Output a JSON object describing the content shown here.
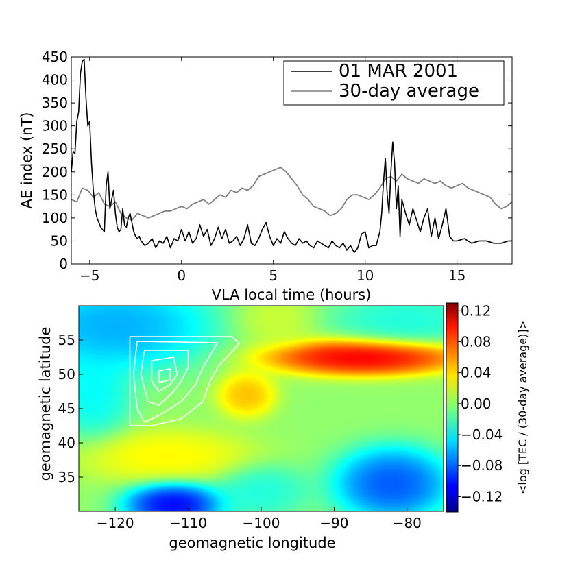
{
  "chart_data": [
    {
      "type": "line",
      "xlabel": "VLA local time (hours)",
      "ylabel": "AE index (nT)",
      "xlim": [
        -6,
        18
      ],
      "ylim": [
        0,
        450
      ],
      "xticks": [
        -5,
        0,
        5,
        10,
        15
      ],
      "xtick_labels": [
        "−5",
        "0",
        "5",
        "10",
        "15"
      ],
      "yticks": [
        0,
        50,
        100,
        150,
        200,
        250,
        300,
        350,
        400,
        450
      ],
      "ytick_labels": [
        "0",
        "50",
        "100",
        "150",
        "200",
        "250",
        "300",
        "350",
        "400",
        "450"
      ],
      "legend_position": "top-right",
      "series": [
        {
          "name": "01 MAR 2001",
          "color": "#000000",
          "x": [
            -6.0,
            -5.9,
            -5.8,
            -5.7,
            -5.6,
            -5.5,
            -5.4,
            -5.3,
            -5.2,
            -5.1,
            -5.0,
            -4.9,
            -4.8,
            -4.7,
            -4.6,
            -4.5,
            -4.4,
            -4.3,
            -4.2,
            -4.1,
            -4.0,
            -3.9,
            -3.8,
            -3.7,
            -3.6,
            -3.5,
            -3.4,
            -3.3,
            -3.2,
            -3.1,
            -3.0,
            -2.9,
            -2.8,
            -2.7,
            -2.6,
            -2.5,
            -2.4,
            -2.3,
            -2.2,
            -2.0,
            -1.8,
            -1.6,
            -1.4,
            -1.2,
            -1.0,
            -0.8,
            -0.6,
            -0.4,
            -0.2,
            0.0,
            0.2,
            0.4,
            0.6,
            0.8,
            1.0,
            1.2,
            1.4,
            1.6,
            1.8,
            2.0,
            2.2,
            2.4,
            2.6,
            2.8,
            3.0,
            3.2,
            3.4,
            3.6,
            3.8,
            4.0,
            4.2,
            4.4,
            4.6,
            4.8,
            5.0,
            5.2,
            5.4,
            5.6,
            5.8,
            6.0,
            6.2,
            6.4,
            6.6,
            6.8,
            7.0,
            7.2,
            7.4,
            7.6,
            7.8,
            8.0,
            8.2,
            8.4,
            8.6,
            8.8,
            9.0,
            9.2,
            9.4,
            9.6,
            9.8,
            10.0,
            10.2,
            10.4,
            10.6,
            10.8,
            10.9,
            11.0,
            11.1,
            11.2,
            11.3,
            11.4,
            11.5,
            11.6,
            11.7,
            11.8,
            11.9,
            12.0,
            12.2,
            12.4,
            12.6,
            12.8,
            13.0,
            13.2,
            13.4,
            13.6,
            13.8,
            14.0,
            14.2,
            14.4,
            14.6,
            14.8,
            15.0,
            15.4,
            15.8,
            16.2,
            16.6,
            17.0,
            17.4,
            17.8,
            18.0
          ],
          "values": [
            200,
            245,
            240,
            310,
            330,
            415,
            440,
            445,
            360,
            300,
            310,
            220,
            160,
            120,
            100,
            90,
            80,
            75,
            70,
            170,
            200,
            120,
            140,
            160,
            110,
            80,
            70,
            75,
            120,
            85,
            80,
            100,
            110,
            90,
            70,
            60,
            55,
            60,
            50,
            40,
            45,
            55,
            35,
            50,
            45,
            60,
            35,
            55,
            50,
            75,
            50,
            70,
            45,
            55,
            85,
            60,
            75,
            40,
            55,
            80,
            55,
            75,
            45,
            50,
            60,
            40,
            55,
            85,
            45,
            40,
            55,
            75,
            90,
            60,
            40,
            55,
            45,
            70,
            55,
            45,
            40,
            55,
            45,
            50,
            40,
            35,
            50,
            45,
            40,
            35,
            50,
            40,
            35,
            45,
            30,
            40,
            25,
            35,
            65,
            70,
            35,
            40,
            40,
            70,
            110,
            180,
            230,
            150,
            110,
            200,
            265,
            220,
            120,
            170,
            60,
            140,
            110,
            85,
            120,
            95,
            70,
            100,
            120,
            60,
            100,
            55,
            85,
            120,
            60,
            50,
            50,
            55,
            45,
            50,
            50,
            45,
            45,
            50,
            50
          ]
        },
        {
          "name": "30-day average",
          "color": "#7f7f7f",
          "x": [
            -6.0,
            -5.7,
            -5.4,
            -5.1,
            -4.8,
            -4.5,
            -4.2,
            -3.9,
            -3.6,
            -3.3,
            -3.0,
            -2.7,
            -2.4,
            -2.1,
            -1.8,
            -1.5,
            -1.2,
            -0.9,
            -0.6,
            -0.3,
            0.0,
            0.3,
            0.6,
            0.9,
            1.2,
            1.5,
            1.8,
            2.1,
            2.4,
            2.7,
            3.0,
            3.3,
            3.6,
            3.9,
            4.2,
            4.5,
            4.8,
            5.1,
            5.4,
            5.7,
            6.0,
            6.3,
            6.6,
            6.9,
            7.2,
            7.5,
            7.8,
            8.1,
            8.4,
            8.7,
            9.0,
            9.3,
            9.6,
            9.9,
            10.2,
            10.5,
            10.8,
            11.1,
            11.4,
            11.7,
            12.0,
            12.3,
            12.6,
            12.9,
            13.2,
            13.5,
            13.8,
            14.1,
            14.4,
            14.7,
            15.0,
            15.3,
            15.6,
            15.9,
            16.2,
            16.5,
            16.8,
            17.1,
            17.4,
            17.7,
            18.0
          ],
          "values": [
            140,
            135,
            165,
            160,
            145,
            155,
            130,
            125,
            135,
            110,
            100,
            95,
            110,
            105,
            100,
            105,
            110,
            115,
            115,
            120,
            125,
            120,
            130,
            135,
            140,
            130,
            140,
            150,
            145,
            160,
            155,
            165,
            160,
            170,
            190,
            195,
            200,
            205,
            210,
            200,
            185,
            170,
            150,
            140,
            125,
            120,
            115,
            105,
            110,
            120,
            140,
            150,
            150,
            145,
            140,
            150,
            165,
            185,
            190,
            180,
            195,
            185,
            180,
            175,
            185,
            180,
            175,
            180,
            170,
            165,
            170,
            175,
            165,
            160,
            155,
            150,
            145,
            130,
            120,
            125,
            135
          ]
        }
      ]
    },
    {
      "type": "heatmap",
      "xlabel": "geomagnetic longitude",
      "ylabel": "geomagnetic latitude",
      "xlim": [
        -125,
        -75
      ],
      "ylim": [
        30,
        60
      ],
      "xticks": [
        -120,
        -110,
        -100,
        -90,
        -80
      ],
      "xtick_labels": [
        "−120",
        "−110",
        "−100",
        "−90",
        "−80"
      ],
      "yticks": [
        35,
        40,
        45,
        50,
        55
      ],
      "ytick_labels": [
        "35",
        "40",
        "45",
        "50",
        "55"
      ],
      "colorbar": {
        "label": "<log [TEC / (30-day average)]>",
        "vmin": -0.14,
        "vmax": 0.13,
        "ticks": [
          0.12,
          0.08,
          0.04,
          0.0,
          -0.04,
          -0.08,
          -0.12
        ],
        "tick_labels": [
          "0.12",
          "0.08",
          "0.04",
          "0.00",
          "−0.04",
          "−0.08",
          "−0.12"
        ],
        "colormap": "jet"
      },
      "field_features": [
        {
          "lon": -120,
          "lat": 57,
          "value": -0.08,
          "spread_lon": 10,
          "spread_lat": 5
        },
        {
          "lon": -80,
          "lat": 58,
          "value": -0.04,
          "spread_lon": 8,
          "spread_lat": 3
        },
        {
          "lon": -112,
          "lat": 31,
          "value": -0.14,
          "spread_lon": 5,
          "spread_lat": 2.5
        },
        {
          "lon": -82,
          "lat": 34,
          "value": -0.11,
          "spread_lon": 6,
          "spread_lat": 4
        },
        {
          "lon": -100,
          "lat": 33,
          "value": -0.04,
          "spread_lon": 5,
          "spread_lat": 3
        },
        {
          "lon": -86,
          "lat": 52.5,
          "value": 0.13,
          "spread_lon": 10,
          "spread_lat": 2
        },
        {
          "lon": -102,
          "lat": 47,
          "value": 0.06,
          "spread_lon": 3,
          "spread_lat": 2.5
        },
        {
          "lon": -113,
          "lat": 38,
          "value": 0.04,
          "spread_lon": 9,
          "spread_lat": 3
        },
        {
          "lon": -98,
          "lat": 58,
          "value": 0.02,
          "spread_lon": 4,
          "spread_lat": 3
        },
        {
          "lon": -123,
          "lat": 47,
          "value": -0.05,
          "spread_lon": 4,
          "spread_lat": 5
        }
      ],
      "contours": [
        {
          "name": "contour-outer",
          "points": [
            [
              -118,
              55.5
            ],
            [
              -104,
              55.5
            ],
            [
              -103,
              54.5
            ],
            [
              -106,
              51
            ],
            [
              -107,
              49
            ],
            [
              -108,
              46
            ],
            [
              -111,
              43.5
            ],
            [
              -115,
              42.5
            ],
            [
              -118,
              42.5
            ],
            [
              -118,
              50
            ]
          ]
        },
        {
          "name": "contour-2",
          "points": [
            [
              -117,
              54.8
            ],
            [
              -106,
              54.6
            ],
            [
              -108,
              51
            ],
            [
              -109,
              48.5
            ],
            [
              -111,
              46
            ],
            [
              -114,
              44
            ],
            [
              -116,
              43
            ],
            [
              -117,
              45
            ],
            [
              -117.5,
              50
            ]
          ]
        },
        {
          "name": "contour-3",
          "points": [
            [
              -116,
              53.5
            ],
            [
              -110,
              53.5
            ],
            [
              -110,
              51
            ],
            [
              -111,
              49
            ],
            [
              -112,
              47.5
            ],
            [
              -114,
              45.5
            ],
            [
              -115.5,
              46
            ],
            [
              -116.5,
              50
            ]
          ]
        },
        {
          "name": "contour-4",
          "points": [
            [
              -115,
              52
            ],
            [
              -112,
              52.5
            ],
            [
              -111.5,
              50
            ],
            [
              -112.5,
              48.5
            ],
            [
              -114,
              47.5
            ],
            [
              -115,
              49
            ]
          ]
        },
        {
          "name": "contour-5",
          "points": [
            [
              -114,
              50.5
            ],
            [
              -112.5,
              50.8
            ],
            [
              -112.5,
              49.2
            ],
            [
              -114,
              48.8
            ]
          ]
        }
      ]
    }
  ]
}
